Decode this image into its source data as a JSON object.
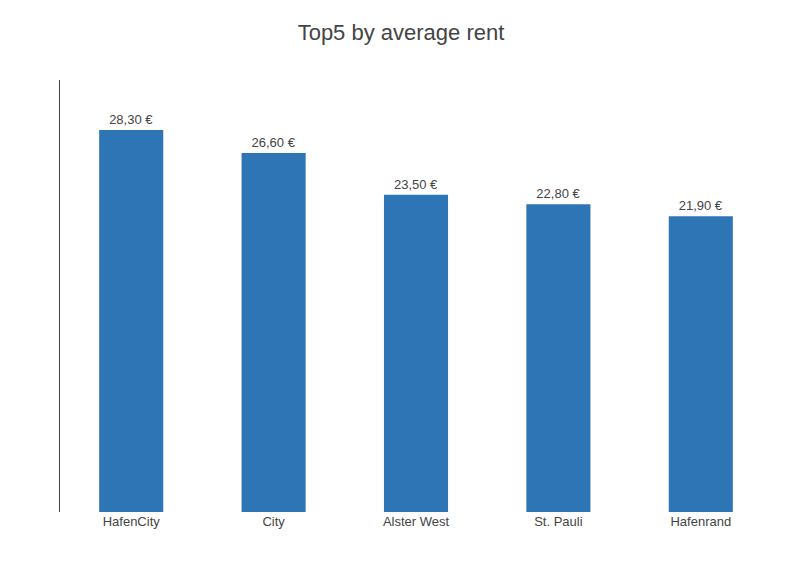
{
  "chart_data": {
    "type": "bar",
    "title": "Top5 by average rent",
    "categories": [
      "HafenCity",
      "City",
      "Alster West",
      "St. Pauli",
      "Hafenrand"
    ],
    "values": [
      28.3,
      26.6,
      23.5,
      22.8,
      21.9
    ],
    "value_labels": [
      "28,30 €",
      "26,60 €",
      "23,50 €",
      "22,80 €",
      "21,90 €"
    ],
    "color": "#2e75b6",
    "ylim": [
      0,
      32
    ],
    "data_labels": true,
    "grid": false,
    "tick_labels": "x"
  }
}
